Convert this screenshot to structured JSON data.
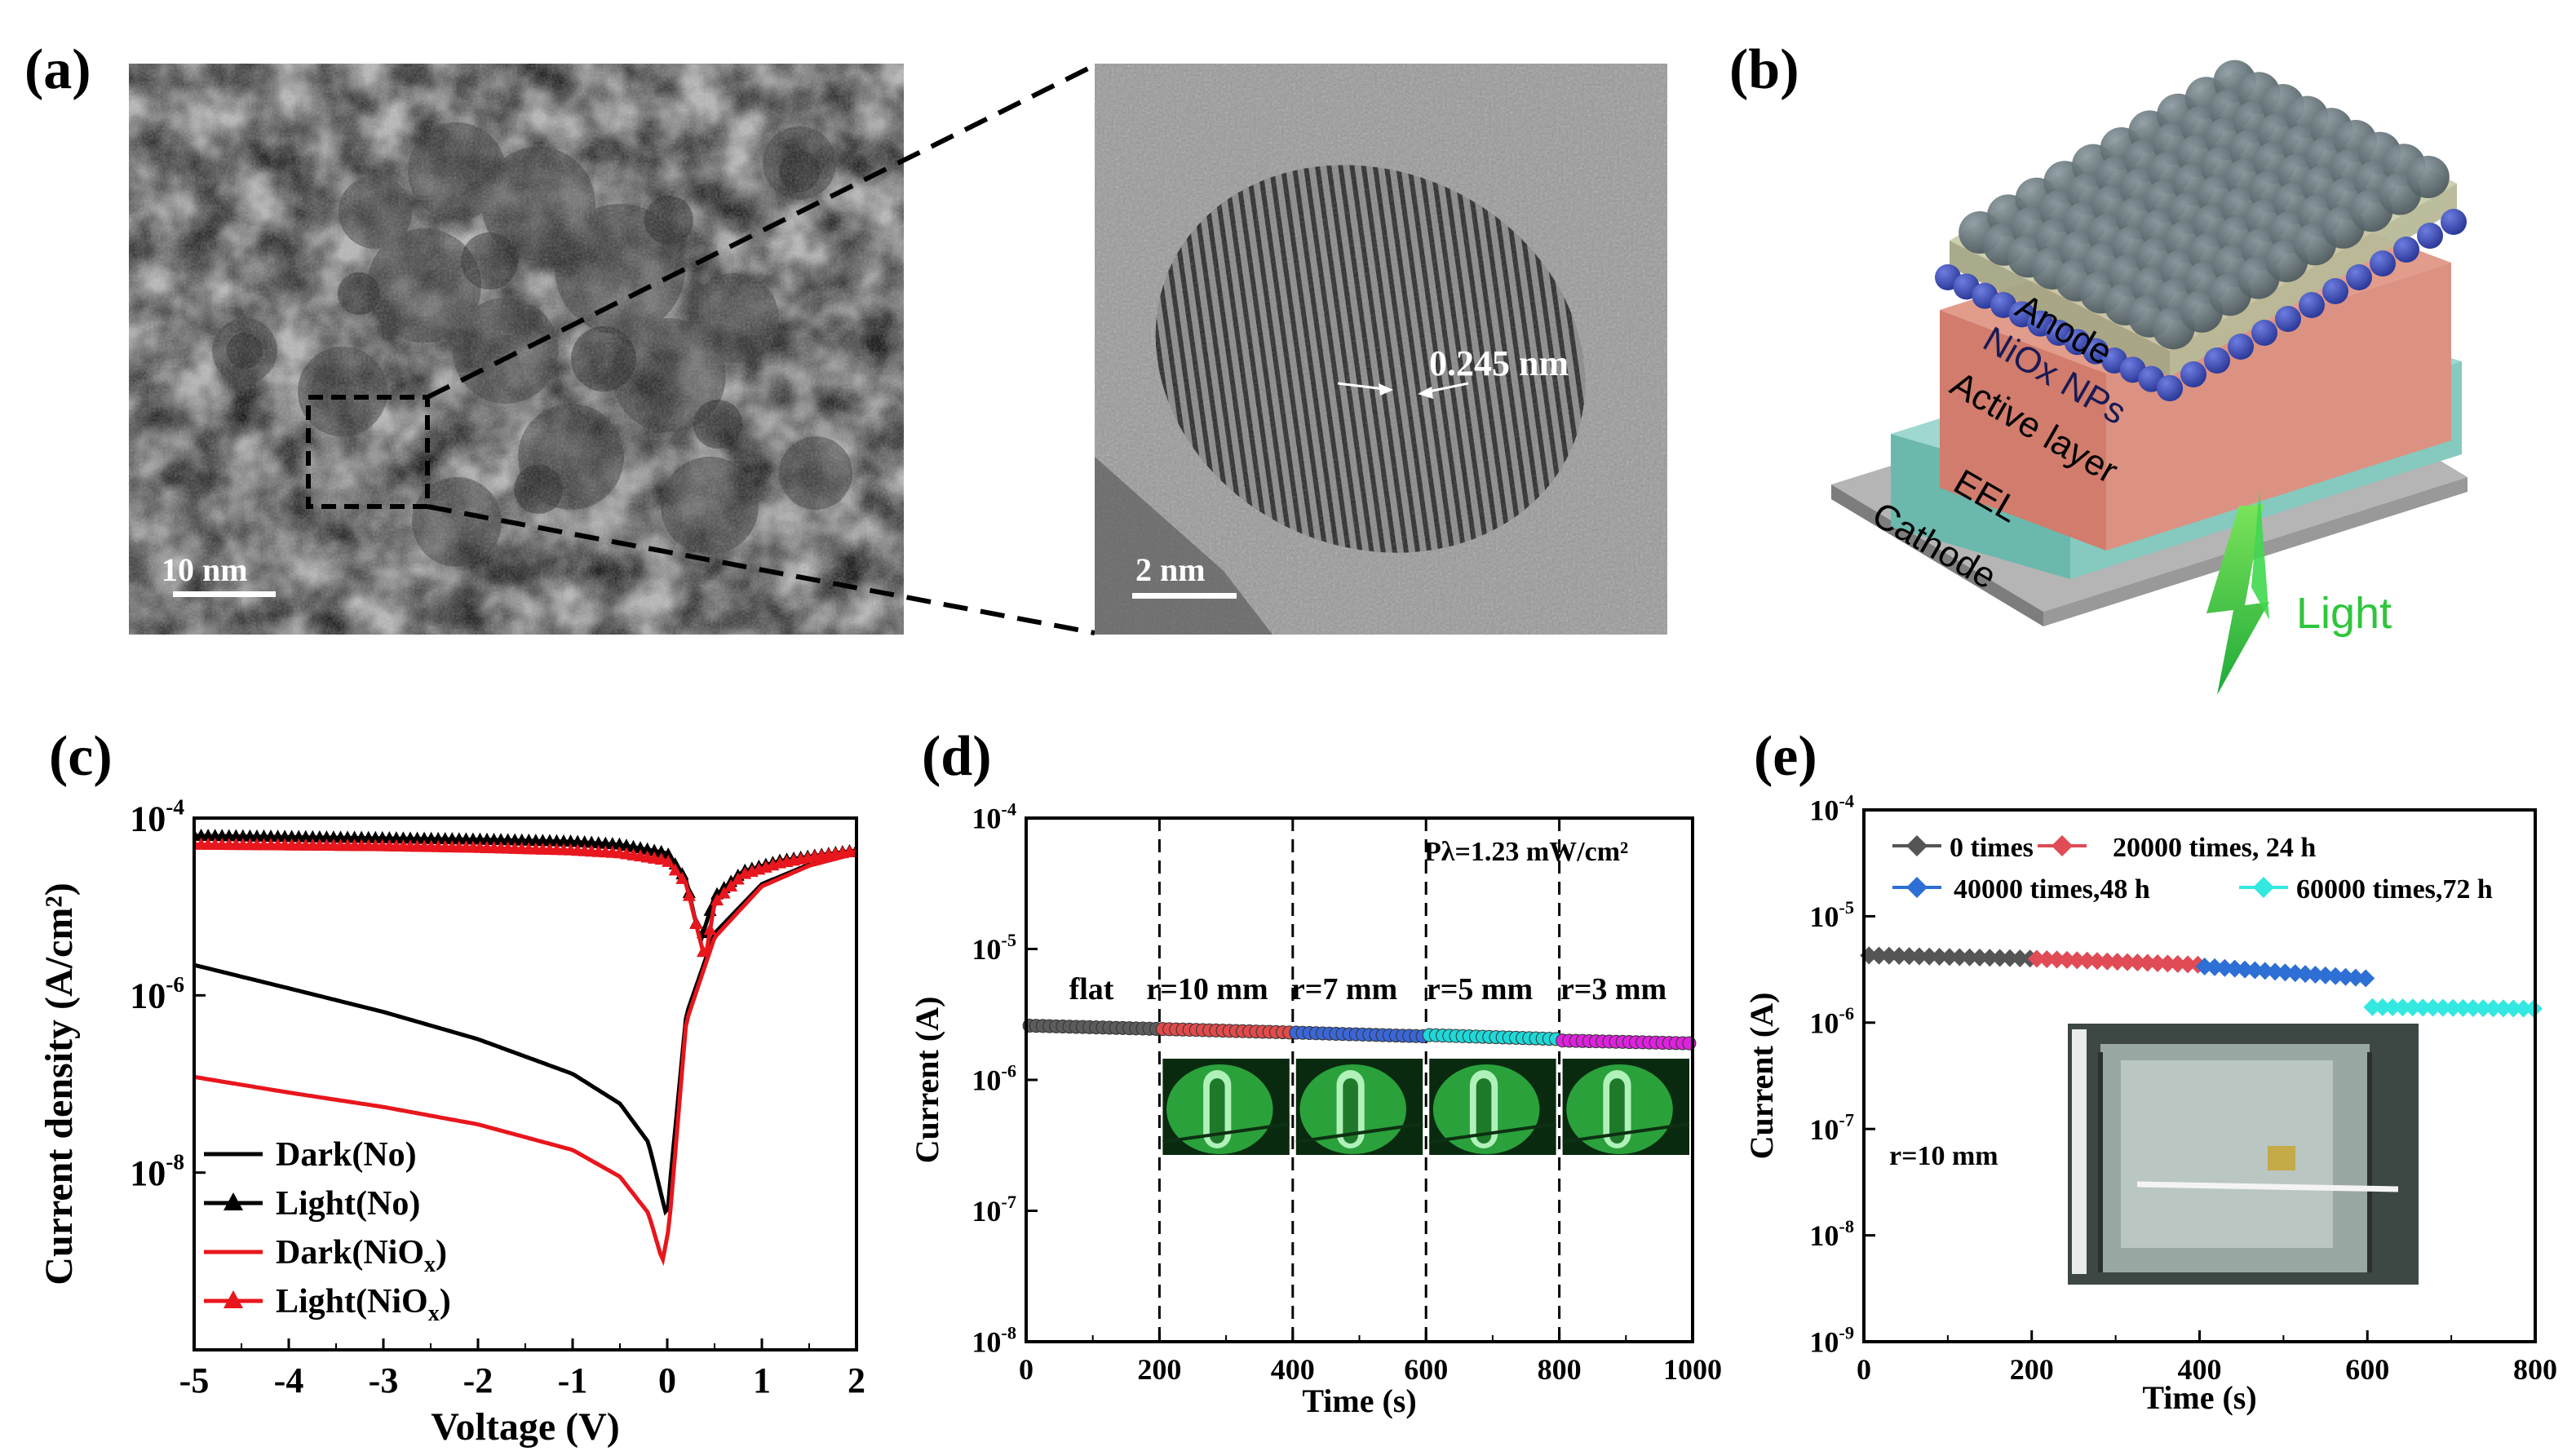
{
  "panels": {
    "a": {
      "letter": "(a)",
      "left_scale": "10 nm",
      "right_scale": "2 nm",
      "lattice_spacing": "0.245 nm"
    },
    "b": {
      "letter": "(b)",
      "layers": [
        "Anode",
        "NiOx NPs",
        "Active layer",
        "EEL",
        "Cathode"
      ],
      "light_label": "Light",
      "colors": {
        "anode": "#b9bca0",
        "np": "#3e4a8c",
        "active": "#d88a7c",
        "eel": "#8fcfc6",
        "cathode": "#9a9a9a",
        "light": "#2fc63c"
      }
    },
    "c": {
      "letter": "(c)"
    },
    "d": {
      "letter": "(d)",
      "power_label": "Pλ=1.23 mW/cm²",
      "region_labels": [
        "flat",
        "r=10 mm",
        "r=7 mm",
        "r=5 mm",
        "r=3 mm"
      ]
    },
    "e": {
      "letter": "(e)",
      "radius_label": "r=10 mm"
    }
  },
  "chart_data": [
    {
      "panel": "c",
      "type": "line",
      "xlabel": "Voltage (V)",
      "ylabel": "Current density (A/cm²)",
      "xlim": [
        -5,
        2
      ],
      "ylim": [
        1e-10,
        0.0001
      ],
      "yscale": "log",
      "x_ticks": [
        "-5",
        "-4",
        "-3",
        "-2",
        "-1",
        "0",
        "1",
        "2"
      ],
      "y_ticks": [
        "10⁻⁴",
        "10⁻⁶",
        "10⁻⁸"
      ],
      "legend": "bottom-left",
      "series": [
        {
          "name": "Dark(No)",
          "color": "#000000",
          "marker": "none",
          "x": [
            -5,
            -4,
            -3,
            -2,
            -1,
            -0.5,
            -0.2,
            0,
            0.02,
            0.2,
            0.5,
            1,
            1.5,
            2
          ],
          "y": [
            2.2e-06,
            1.2e-06,
            6.5e-07,
            3.2e-07,
            1.3e-07,
            6e-08,
            2.2e-08,
            3e-09,
            6e-09,
            6e-07,
            5e-06,
            1.8e-05,
            3e-05,
            4.2e-05
          ]
        },
        {
          "name": "Light(No)",
          "color": "#000000",
          "marker": "triangle",
          "x": [
            -5,
            -4,
            -3,
            -2,
            -1,
            -0.5,
            0,
            0.2,
            0.35,
            0.5,
            0.8,
            1.2,
            1.6,
            2
          ],
          "y": [
            6.3e-05,
            6.1e-05,
            5.9e-05,
            5.7e-05,
            5.4e-05,
            5e-05,
            4e-05,
            2e-05,
            4e-06,
            1.3e-05,
            2.5e-05,
            3.3e-05,
            3.8e-05,
            4.3e-05
          ]
        },
        {
          "name": "Dark(NiOx)",
          "color": "#e8161d",
          "marker": "none",
          "x": [
            -5,
            -4,
            -3,
            -2,
            -1,
            -0.5,
            -0.2,
            -0.05,
            0.02,
            0.2,
            0.5,
            1,
            1.5,
            2
          ],
          "y": [
            1.2e-07,
            8e-08,
            5.5e-08,
            3.5e-08,
            1.8e-08,
            9e-09,
            3.5e-09,
            1e-09,
            2.5e-09,
            5e-07,
            4.5e-06,
            1.7e-05,
            2.9e-05,
            4e-05
          ]
        },
        {
          "name": "Light(NiOx)",
          "color": "#e8161d",
          "marker": "triangle",
          "x": [
            -5,
            -4,
            -3,
            -2,
            -1,
            -0.5,
            0,
            0.2,
            0.4,
            0.5,
            0.8,
            1.2,
            1.6,
            2
          ],
          "y": [
            5e-05,
            4.9e-05,
            4.8e-05,
            4.6e-05,
            4.3e-05,
            4e-05,
            3.3e-05,
            1.8e-05,
            2.5e-06,
            1.1e-05,
            2.3e-05,
            3.1e-05,
            3.7e-05,
            4.2e-05
          ]
        }
      ]
    },
    {
      "panel": "d",
      "type": "scatter",
      "xlabel": "Time (s)",
      "ylabel": "Current (A)",
      "xlim": [
        0,
        1000
      ],
      "ylim": [
        1e-08,
        0.0001
      ],
      "yscale": "log",
      "x_ticks": [
        "0",
        "200",
        "400",
        "600",
        "800",
        "1000"
      ],
      "y_ticks": [
        "10⁻⁴",
        "10⁻⁵",
        "10⁻⁶",
        "10⁻⁷",
        "10⁻⁸"
      ],
      "dividers": [
        200,
        400,
        600,
        800
      ],
      "series": [
        {
          "color": "#5c5c5c",
          "x_range": [
            0,
            200
          ],
          "y_start": 2.6e-06,
          "y_end": 2.45e-06
        },
        {
          "color": "#e04b4b",
          "x_range": [
            200,
            400
          ],
          "y_start": 2.45e-06,
          "y_end": 2.3e-06
        },
        {
          "color": "#3b66d6",
          "x_range": [
            400,
            600
          ],
          "y_start": 2.3e-06,
          "y_end": 2.15e-06
        },
        {
          "color": "#20d8d8",
          "x_range": [
            600,
            800
          ],
          "y_start": 2.2e-06,
          "y_end": 2.05e-06
        },
        {
          "color": "#dd22dd",
          "x_range": [
            800,
            1000
          ],
          "y_start": 2e-06,
          "y_end": 1.9e-06
        }
      ]
    },
    {
      "panel": "e",
      "type": "scatter",
      "xlabel": "Time (s)",
      "ylabel": "Current (A)",
      "xlim": [
        0,
        800
      ],
      "ylim": [
        1e-09,
        0.0001
      ],
      "yscale": "log",
      "x_ticks": [
        "0",
        "200",
        "400",
        "600",
        "800"
      ],
      "y_ticks": [
        "10⁻⁴",
        "10⁻⁵",
        "10⁻⁶",
        "10⁻⁷",
        "10⁻⁸",
        "10⁻⁹"
      ],
      "legend": "top",
      "series": [
        {
          "name": "0 times",
          "color": "#555555",
          "x_range": [
            0,
            200
          ],
          "y_start": 4.3e-06,
          "y_end": 4e-06
        },
        {
          "name": "20000 times, 24 h",
          "color": "#e04b55",
          "x_range": [
            200,
            400
          ],
          "y_start": 4e-06,
          "y_end": 3.5e-06
        },
        {
          "name": "40000 times,48 h",
          "color": "#2d6fd4",
          "x_range": [
            400,
            600
          ],
          "y_start": 3.4e-06,
          "y_end": 2.6e-06
        },
        {
          "name": "60000 times,72 h",
          "color": "#33e8e0",
          "x_range": [
            600,
            800
          ],
          "y_start": 1.4e-06,
          "y_end": 1.35e-06
        }
      ]
    }
  ]
}
